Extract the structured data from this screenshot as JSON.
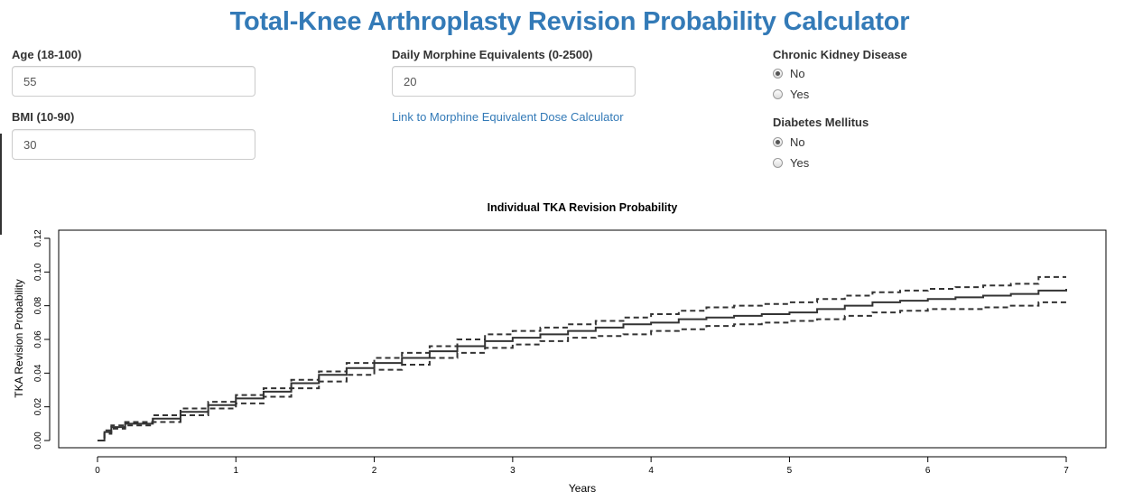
{
  "title": "Total-Knee Arthroplasty Revision Probability Calculator",
  "inputs": {
    "age": {
      "label": "Age (18-100)",
      "value": "55"
    },
    "bmi": {
      "label": "BMI (10-90)",
      "value": "30"
    },
    "morphine": {
      "label": "Daily Morphine Equivalents (0-2500)",
      "value": "20"
    },
    "morphine_link": "Link to Morphine Equivalent Dose Calculator"
  },
  "ckd": {
    "label": "Chronic Kidney Disease",
    "options": [
      "No",
      "Yes"
    ],
    "selected": "No"
  },
  "diabetes": {
    "label": "Diabetes Mellitus",
    "options": [
      "No",
      "Yes"
    ],
    "selected": "No"
  },
  "chart_data": {
    "type": "line",
    "title": "Individual TKA Revision Probability",
    "xlabel": "Years",
    "ylabel": "TKA Revision Probability",
    "xlim": [
      0,
      7
    ],
    "ylim": [
      0,
      0.12
    ],
    "x_ticks": [
      0,
      1,
      2,
      3,
      4,
      5,
      6,
      7
    ],
    "y_ticks": [
      0,
      0.02,
      0.04,
      0.06,
      0.08,
      0.1,
      0.12
    ],
    "y_tick_labels": [
      "0.00",
      "0.02",
      "0.04",
      "0.06",
      "0.08",
      "0.10",
      "0.12"
    ],
    "grid": false,
    "series": [
      {
        "style": "solid",
        "x": [
          0,
          0.05,
          0.1,
          0.2,
          0.4,
          0.6,
          0.8,
          1.0,
          1.2,
          1.4,
          1.6,
          1.8,
          2.0,
          2.2,
          2.4,
          2.6,
          2.8,
          3.0,
          3.2,
          3.4,
          3.6,
          3.8,
          4.0,
          4.2,
          4.4,
          4.6,
          4.8,
          5.0,
          5.2,
          5.4,
          5.6,
          5.8,
          6.0,
          6.2,
          6.4,
          6.6,
          6.8,
          7.0
        ],
        "y": [
          0,
          0.005,
          0.008,
          0.01,
          0.013,
          0.017,
          0.021,
          0.025,
          0.029,
          0.034,
          0.039,
          0.043,
          0.046,
          0.049,
          0.053,
          0.056,
          0.059,
          0.061,
          0.063,
          0.065,
          0.067,
          0.069,
          0.07,
          0.072,
          0.073,
          0.074,
          0.075,
          0.076,
          0.078,
          0.08,
          0.082,
          0.083,
          0.084,
          0.085,
          0.086,
          0.087,
          0.089,
          0.09
        ]
      },
      {
        "style": "dashed",
        "x": [
          0,
          0.05,
          0.1,
          0.2,
          0.4,
          0.6,
          0.8,
          1.0,
          1.2,
          1.4,
          1.6,
          1.8,
          2.0,
          2.2,
          2.4,
          2.6,
          2.8,
          3.0,
          3.2,
          3.4,
          3.6,
          3.8,
          4.0,
          4.2,
          4.4,
          4.6,
          4.8,
          5.0,
          5.2,
          5.4,
          5.6,
          5.8,
          6.0,
          6.2,
          6.4,
          6.6,
          6.8,
          7.0
        ],
        "y": [
          0,
          0.006,
          0.009,
          0.011,
          0.015,
          0.019,
          0.023,
          0.027,
          0.031,
          0.036,
          0.041,
          0.046,
          0.049,
          0.052,
          0.056,
          0.06,
          0.063,
          0.065,
          0.067,
          0.069,
          0.071,
          0.073,
          0.075,
          0.077,
          0.079,
          0.08,
          0.081,
          0.082,
          0.084,
          0.086,
          0.088,
          0.089,
          0.09,
          0.091,
          0.092,
          0.093,
          0.097,
          0.097
        ]
      },
      {
        "style": "dashed",
        "x": [
          0,
          0.05,
          0.1,
          0.2,
          0.4,
          0.6,
          0.8,
          1.0,
          1.2,
          1.4,
          1.6,
          1.8,
          2.0,
          2.2,
          2.4,
          2.6,
          2.8,
          3.0,
          3.2,
          3.4,
          3.6,
          3.8,
          4.0,
          4.2,
          4.4,
          4.6,
          4.8,
          5.0,
          5.2,
          5.4,
          5.6,
          5.8,
          6.0,
          6.2,
          6.4,
          6.6,
          6.8,
          7.0
        ],
        "y": [
          0,
          0.004,
          0.007,
          0.009,
          0.011,
          0.015,
          0.019,
          0.022,
          0.026,
          0.031,
          0.035,
          0.039,
          0.042,
          0.045,
          0.049,
          0.052,
          0.055,
          0.057,
          0.059,
          0.061,
          0.062,
          0.063,
          0.065,
          0.066,
          0.068,
          0.069,
          0.07,
          0.071,
          0.072,
          0.074,
          0.076,
          0.077,
          0.078,
          0.078,
          0.079,
          0.08,
          0.082,
          0.082
        ]
      }
    ]
  }
}
